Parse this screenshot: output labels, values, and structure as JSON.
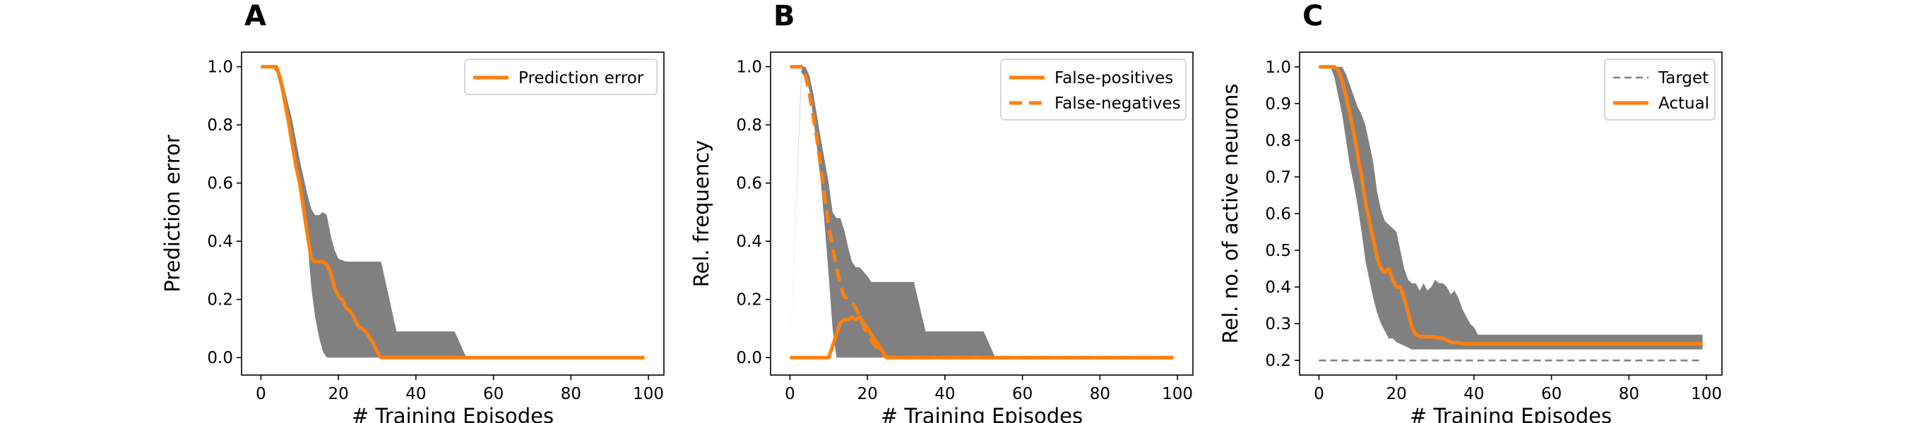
{
  "chart_data": [
    {
      "type": "line",
      "panel_label": "A",
      "xlabel": "# Training Episodes",
      "ylabel": "Prediction error",
      "xlim": [
        -5,
        104
      ],
      "ylim": [
        -0.06,
        1.05
      ],
      "xticks": [
        0,
        20,
        40,
        60,
        80,
        100
      ],
      "yticks": [
        0.0,
        0.2,
        0.4,
        0.6,
        0.8,
        1.0
      ],
      "ytick_labels": [
        "0.0",
        "0.2",
        "0.4",
        "0.6",
        "0.8",
        "1.0"
      ],
      "legend_position": "top-right",
      "band_color": "#808080",
      "band": {
        "upper": [
          [
            0,
            1.0
          ],
          [
            3,
            1.0
          ],
          [
            4,
            1.0
          ],
          [
            5,
            0.97
          ],
          [
            6,
            0.93
          ],
          [
            8,
            0.82
          ],
          [
            10,
            0.68
          ],
          [
            12,
            0.56
          ],
          [
            13,
            0.51
          ],
          [
            14,
            0.49
          ],
          [
            15,
            0.49
          ],
          [
            16,
            0.5
          ],
          [
            17,
            0.49
          ],
          [
            18,
            0.42
          ],
          [
            19,
            0.37
          ],
          [
            20,
            0.34
          ],
          [
            22,
            0.33
          ],
          [
            25,
            0.33
          ],
          [
            28,
            0.33
          ],
          [
            31,
            0.33
          ],
          [
            33,
            0.21
          ],
          [
            35,
            0.09
          ],
          [
            40,
            0.09
          ],
          [
            45,
            0.09
          ],
          [
            50,
            0.09
          ],
          [
            53,
            0.0
          ],
          [
            99,
            0.0
          ]
        ],
        "lower": [
          [
            0,
            1.0
          ],
          [
            3,
            1.0
          ],
          [
            4,
            0.98
          ],
          [
            5,
            0.93
          ],
          [
            6,
            0.87
          ],
          [
            8,
            0.72
          ],
          [
            10,
            0.58
          ],
          [
            12,
            0.4
          ],
          [
            13,
            0.24
          ],
          [
            14,
            0.14
          ],
          [
            15,
            0.07
          ],
          [
            16,
            0.02
          ],
          [
            17,
            0.0
          ],
          [
            99,
            0.0
          ]
        ]
      },
      "series": [
        {
          "name": "Prediction error",
          "color": "#ff7f0e",
          "style": "solid",
          "points": [
            [
              0,
              1.0
            ],
            [
              4,
              1.0
            ],
            [
              5,
              0.96
            ],
            [
              6,
              0.89
            ],
            [
              7,
              0.82
            ],
            [
              8,
              0.74
            ],
            [
              9,
              0.66
            ],
            [
              10,
              0.6
            ],
            [
              11,
              0.51
            ],
            [
              12,
              0.42
            ],
            [
              13,
              0.34
            ],
            [
              14,
              0.33
            ],
            [
              15,
              0.33
            ],
            [
              16,
              0.33
            ],
            [
              17,
              0.32
            ],
            [
              18,
              0.29
            ],
            [
              19,
              0.24
            ],
            [
              20,
              0.21
            ],
            [
              21,
              0.2
            ],
            [
              22,
              0.17
            ],
            [
              23,
              0.16
            ],
            [
              24,
              0.14
            ],
            [
              25,
              0.11
            ],
            [
              26,
              0.1
            ],
            [
              27,
              0.09
            ],
            [
              28,
              0.07
            ],
            [
              29,
              0.05
            ],
            [
              30,
              0.02
            ],
            [
              31,
              0.0
            ],
            [
              99,
              0.0
            ]
          ]
        }
      ]
    },
    {
      "type": "line",
      "panel_label": "B",
      "xlabel": "# Training Episodes",
      "ylabel": "Rel. frequency",
      "xlim": [
        -5,
        104
      ],
      "ylim": [
        -0.06,
        1.05
      ],
      "xticks": [
        0,
        20,
        40,
        60,
        80,
        100
      ],
      "yticks": [
        0.0,
        0.2,
        0.4,
        0.6,
        0.8,
        1.0
      ],
      "ytick_labels": [
        "0.0",
        "0.2",
        "0.4",
        "0.6",
        "0.8",
        "1.0"
      ],
      "legend_position": "top-right",
      "band_color": "#808080",
      "band": {
        "upper": [
          [
            0,
            0.0
          ],
          [
            3,
            1.0
          ],
          [
            4,
            1.0
          ],
          [
            5,
            0.97
          ],
          [
            6,
            0.91
          ],
          [
            8,
            0.75
          ],
          [
            10,
            0.6
          ],
          [
            11,
            0.5
          ],
          [
            12,
            0.48
          ],
          [
            13,
            0.48
          ],
          [
            14,
            0.44
          ],
          [
            15,
            0.38
          ],
          [
            16,
            0.33
          ],
          [
            17,
            0.31
          ],
          [
            18,
            0.31
          ],
          [
            20,
            0.28
          ],
          [
            21,
            0.26
          ],
          [
            25,
            0.26
          ],
          [
            30,
            0.26
          ],
          [
            32,
            0.26
          ],
          [
            35,
            0.09
          ],
          [
            40,
            0.09
          ],
          [
            45,
            0.09
          ],
          [
            50,
            0.09
          ],
          [
            53,
            0.0
          ],
          [
            99,
            0.0
          ]
        ],
        "lower": [
          [
            0,
            0.0
          ],
          [
            3,
            0.98
          ],
          [
            4,
            0.96
          ],
          [
            5,
            0.92
          ],
          [
            6,
            0.83
          ],
          [
            7,
            0.72
          ],
          [
            8,
            0.6
          ],
          [
            9,
            0.45
          ],
          [
            10,
            0.28
          ],
          [
            11,
            0.1
          ],
          [
            12,
            0.0
          ],
          [
            99,
            0.0
          ]
        ]
      },
      "series": [
        {
          "name": "False-positives",
          "color": "#ff7f0e",
          "style": "solid",
          "points": [
            [
              0,
              0.0
            ],
            [
              10,
              0.0
            ],
            [
              11,
              0.04
            ],
            [
              12,
              0.08
            ],
            [
              13,
              0.12
            ],
            [
              14,
              0.13
            ],
            [
              15,
              0.13
            ],
            [
              16,
              0.14
            ],
            [
              17,
              0.13
            ],
            [
              18,
              0.14
            ],
            [
              19,
              0.12
            ],
            [
              20,
              0.1
            ],
            [
              21,
              0.08
            ],
            [
              22,
              0.06
            ],
            [
              23,
              0.04
            ],
            [
              24,
              0.02
            ],
            [
              25,
              0.0
            ],
            [
              99,
              0.0
            ]
          ]
        },
        {
          "name": "False-negatives",
          "color": "#ff7f0e",
          "style": "dashed",
          "points": [
            [
              0,
              1.0
            ],
            [
              3,
              1.0
            ],
            [
              4,
              0.97
            ],
            [
              5,
              0.91
            ],
            [
              6,
              0.83
            ],
            [
              7,
              0.75
            ],
            [
              8,
              0.65
            ],
            [
              9,
              0.55
            ],
            [
              10,
              0.45
            ],
            [
              11,
              0.38
            ],
            [
              12,
              0.31
            ],
            [
              13,
              0.25
            ],
            [
              14,
              0.21
            ],
            [
              15,
              0.2
            ],
            [
              16,
              0.19
            ],
            [
              17,
              0.17
            ],
            [
              18,
              0.14
            ],
            [
              19,
              0.11
            ],
            [
              20,
              0.08
            ],
            [
              21,
              0.06
            ],
            [
              22,
              0.04
            ],
            [
              23,
              0.03
            ],
            [
              24,
              0.01
            ],
            [
              25,
              0.0
            ],
            [
              99,
              0.0
            ]
          ]
        }
      ]
    },
    {
      "type": "line",
      "panel_label": "C",
      "xlabel": "# Training Episodes",
      "ylabel": "Rel. no. of active neurons",
      "xlim": [
        -5,
        104
      ],
      "ylim": [
        0.16,
        1.04
      ],
      "xticks": [
        0,
        20,
        40,
        60,
        80,
        100
      ],
      "yticks": [
        0.2,
        0.3,
        0.4,
        0.5,
        0.6,
        0.7,
        0.8,
        0.9,
        1.0
      ],
      "ytick_labels": [
        "0.2",
        "0.3",
        "0.4",
        "0.5",
        "0.6",
        "0.7",
        "0.8",
        "0.9",
        "1.0"
      ],
      "legend_position": "top-right",
      "band_color": "#808080",
      "band": {
        "upper": [
          [
            0,
            1.0
          ],
          [
            3,
            1.0
          ],
          [
            5,
            1.0
          ],
          [
            6,
            1.0
          ],
          [
            7,
            0.98
          ],
          [
            8,
            0.95
          ],
          [
            9,
            0.92
          ],
          [
            10,
            0.89
          ],
          [
            11,
            0.87
          ],
          [
            12,
            0.84
          ],
          [
            13,
            0.79
          ],
          [
            14,
            0.74
          ],
          [
            15,
            0.66
          ],
          [
            16,
            0.61
          ],
          [
            17,
            0.58
          ],
          [
            18,
            0.57
          ],
          [
            19,
            0.56
          ],
          [
            20,
            0.55
          ],
          [
            21,
            0.5
          ],
          [
            22,
            0.45
          ],
          [
            23,
            0.42
          ],
          [
            24,
            0.41
          ],
          [
            25,
            0.41
          ],
          [
            26,
            0.39
          ],
          [
            27,
            0.41
          ],
          [
            28,
            0.39
          ],
          [
            29,
            0.4
          ],
          [
            30,
            0.42
          ],
          [
            31,
            0.41
          ],
          [
            32,
            0.41
          ],
          [
            33,
            0.4
          ],
          [
            34,
            0.38
          ],
          [
            35,
            0.39
          ],
          [
            36,
            0.37
          ],
          [
            37,
            0.34
          ],
          [
            38,
            0.32
          ],
          [
            39,
            0.3
          ],
          [
            40,
            0.29
          ],
          [
            41,
            0.27
          ],
          [
            99,
            0.27
          ]
        ],
        "lower": [
          [
            0,
            1.0
          ],
          [
            3,
            1.0
          ],
          [
            4,
            0.97
          ],
          [
            5,
            0.92
          ],
          [
            6,
            0.87
          ],
          [
            7,
            0.8
          ],
          [
            8,
            0.73
          ],
          [
            9,
            0.68
          ],
          [
            10,
            0.62
          ],
          [
            11,
            0.55
          ],
          [
            12,
            0.47
          ],
          [
            13,
            0.42
          ],
          [
            14,
            0.37
          ],
          [
            15,
            0.33
          ],
          [
            16,
            0.3
          ],
          [
            17,
            0.28
          ],
          [
            18,
            0.26
          ],
          [
            19,
            0.26
          ],
          [
            20,
            0.25
          ],
          [
            22,
            0.24
          ],
          [
            24,
            0.23
          ],
          [
            26,
            0.23
          ],
          [
            99,
            0.23
          ]
        ]
      },
      "series": [
        {
          "name": "Target",
          "color": "#808080",
          "style": "dashed",
          "points": [
            [
              0,
              0.2
            ],
            [
              99,
              0.2
            ]
          ]
        },
        {
          "name": "Actual",
          "color": "#ff7f0e",
          "style": "solid",
          "points": [
            [
              0,
              1.0
            ],
            [
              4,
              1.0
            ],
            [
              5,
              0.99
            ],
            [
              6,
              0.96
            ],
            [
              7,
              0.92
            ],
            [
              8,
              0.87
            ],
            [
              9,
              0.82
            ],
            [
              10,
              0.76
            ],
            [
              11,
              0.7
            ],
            [
              12,
              0.63
            ],
            [
              13,
              0.58
            ],
            [
              14,
              0.53
            ],
            [
              15,
              0.48
            ],
            [
              16,
              0.45
            ],
            [
              17,
              0.44
            ],
            [
              18,
              0.45
            ],
            [
              19,
              0.42
            ],
            [
              20,
              0.4
            ],
            [
              21,
              0.4
            ],
            [
              22,
              0.37
            ],
            [
              23,
              0.33
            ],
            [
              24,
              0.29
            ],
            [
              25,
              0.27
            ],
            [
              26,
              0.265
            ],
            [
              28,
              0.265
            ],
            [
              30,
              0.263
            ],
            [
              32,
              0.26
            ],
            [
              34,
              0.25
            ],
            [
              36,
              0.248
            ],
            [
              38,
              0.245
            ],
            [
              40,
              0.245
            ],
            [
              99,
              0.245
            ]
          ]
        }
      ]
    }
  ]
}
